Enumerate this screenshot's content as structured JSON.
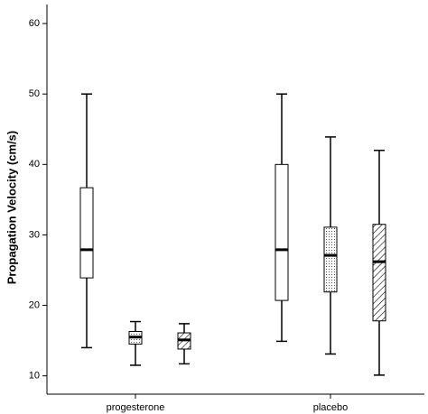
{
  "chart_data": {
    "type": "box",
    "y_label": "Propagation Velocity (cm/s)",
    "categories": [
      "progesterone",
      "placebo"
    ],
    "ylim": [
      7.4,
      62.7
    ],
    "yticks": [
      10,
      20,
      30,
      40,
      50,
      60
    ],
    "color": "#000000",
    "series": [
      {
        "pattern": "plain",
        "values": [
          {
            "min": 14,
            "q1": 23.9,
            "median": 27.9,
            "q3": 36.7,
            "max": 50
          },
          {
            "min": 14.9,
            "q1": 20.7,
            "median": 27.9,
            "q3": 40,
            "max": 50
          }
        ]
      },
      {
        "pattern": "dotted",
        "values": [
          {
            "min": 11.5,
            "q1": 14.5,
            "median": 15.5,
            "q3": 16.3,
            "max": 17.7
          },
          {
            "min": 13.1,
            "q1": 21.9,
            "median": 27.1,
            "q3": 31.1,
            "max": 43.9
          }
        ]
      },
      {
        "pattern": "hatched",
        "values": [
          {
            "min": 11.7,
            "q1": 13.8,
            "median": 15.1,
            "q3": 16.1,
            "max": 17.4
          },
          {
            "min": 10.1,
            "q1": 17.8,
            "median": 26.2,
            "q3": 31.5,
            "max": 42
          }
        ]
      }
    ]
  }
}
